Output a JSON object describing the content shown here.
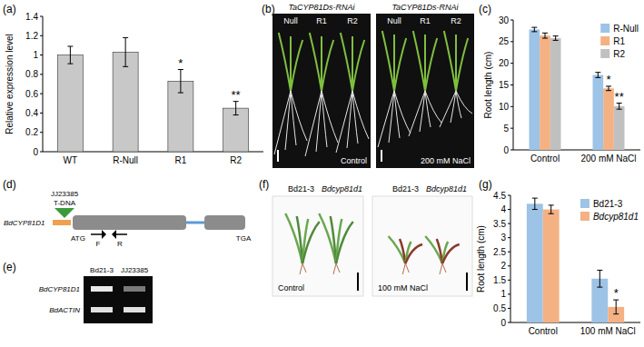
{
  "panel_labels": [
    "(a)",
    "(b)",
    "(c)",
    "(d)",
    "(e)",
    "(f)",
    "(g)"
  ],
  "chart_data": [
    {
      "type": "bar",
      "y_label": "Relative expression level",
      "categories": [
        "WT",
        "R-Null",
        "R1",
        "R2"
      ],
      "values": [
        1.0,
        1.03,
        0.73,
        0.45
      ],
      "errors": [
        0.09,
        0.15,
        0.12,
        0.07
      ],
      "significance": [
        null,
        null,
        "*",
        "**"
      ],
      "color": "#c8c8c8",
      "ylim": [
        0,
        1.4
      ],
      "yticks": [
        0,
        0.2,
        0.4,
        0.6,
        0.8,
        1,
        1.2,
        1.4
      ]
    },
    {
      "type": "bar",
      "y_label": "Root length (cm)",
      "categories": [
        "Control",
        "200 mM NaCl"
      ],
      "series": [
        {
          "name": "R-Null",
          "color": "#9dc3e6",
          "values": [
            27.8,
            17.3
          ],
          "errors": [
            0.5,
            0.6
          ],
          "significance": [
            null,
            null
          ]
        },
        {
          "name": "R1",
          "color": "#f4b183",
          "values": [
            26.4,
            14.2
          ],
          "errors": [
            0.6,
            0.5
          ],
          "significance": [
            null,
            "*"
          ]
        },
        {
          "name": "R2",
          "color": "#c0c0c0",
          "values": [
            25.8,
            10.1
          ],
          "errors": [
            0.5,
            0.7
          ],
          "significance": [
            null,
            "**"
          ]
        }
      ],
      "legend": "top-right",
      "ylim": [
        0,
        30
      ],
      "yticks": [
        0,
        5,
        10,
        15,
        20,
        25,
        30
      ]
    },
    {
      "type": "bar",
      "y_label": "Root length (cm)",
      "categories": [
        "Control",
        "100 mM NaCl"
      ],
      "series": [
        {
          "name": "Bd21-3",
          "color": "#9dc3e6",
          "values": [
            4.2,
            1.55
          ],
          "errors": [
            0.2,
            0.3
          ],
          "significance": [
            null,
            null
          ]
        },
        {
          "name": "Bdcyp81d1",
          "color": "#f4b183",
          "values": [
            4.0,
            0.55
          ],
          "errors": [
            0.15,
            0.25
          ],
          "significance": [
            null,
            "*"
          ]
        }
      ],
      "legend": "top-right",
      "ylim": [
        0,
        4.5
      ],
      "yticks": [
        0,
        0.5,
        1,
        1.5,
        2,
        2.5,
        3,
        3.5,
        4,
        4.5
      ]
    }
  ],
  "photos_b": {
    "title": "TaCYP81Ds-RNAi",
    "lanes": [
      "Null",
      "R1",
      "R2"
    ],
    "conditions": [
      "Control",
      "200 mM NaCl"
    ]
  },
  "gene_d": {
    "gene": "BdCYP81D1",
    "insertion": "JJ23385",
    "insertion_type": "T-DNA",
    "start": "ATG",
    "stop": "TGA",
    "primers": [
      "F",
      "R"
    ]
  },
  "gel_e": {
    "lines": [
      "Bd21-3",
      "JJ23385"
    ],
    "genes": [
      "BdCYP81D1",
      "BdACTIN"
    ]
  },
  "photos_f": {
    "lines": [
      "Bd21-3",
      "Bdcyp81d1"
    ],
    "conditions": [
      "Control",
      "100 mM NaCl"
    ]
  }
}
